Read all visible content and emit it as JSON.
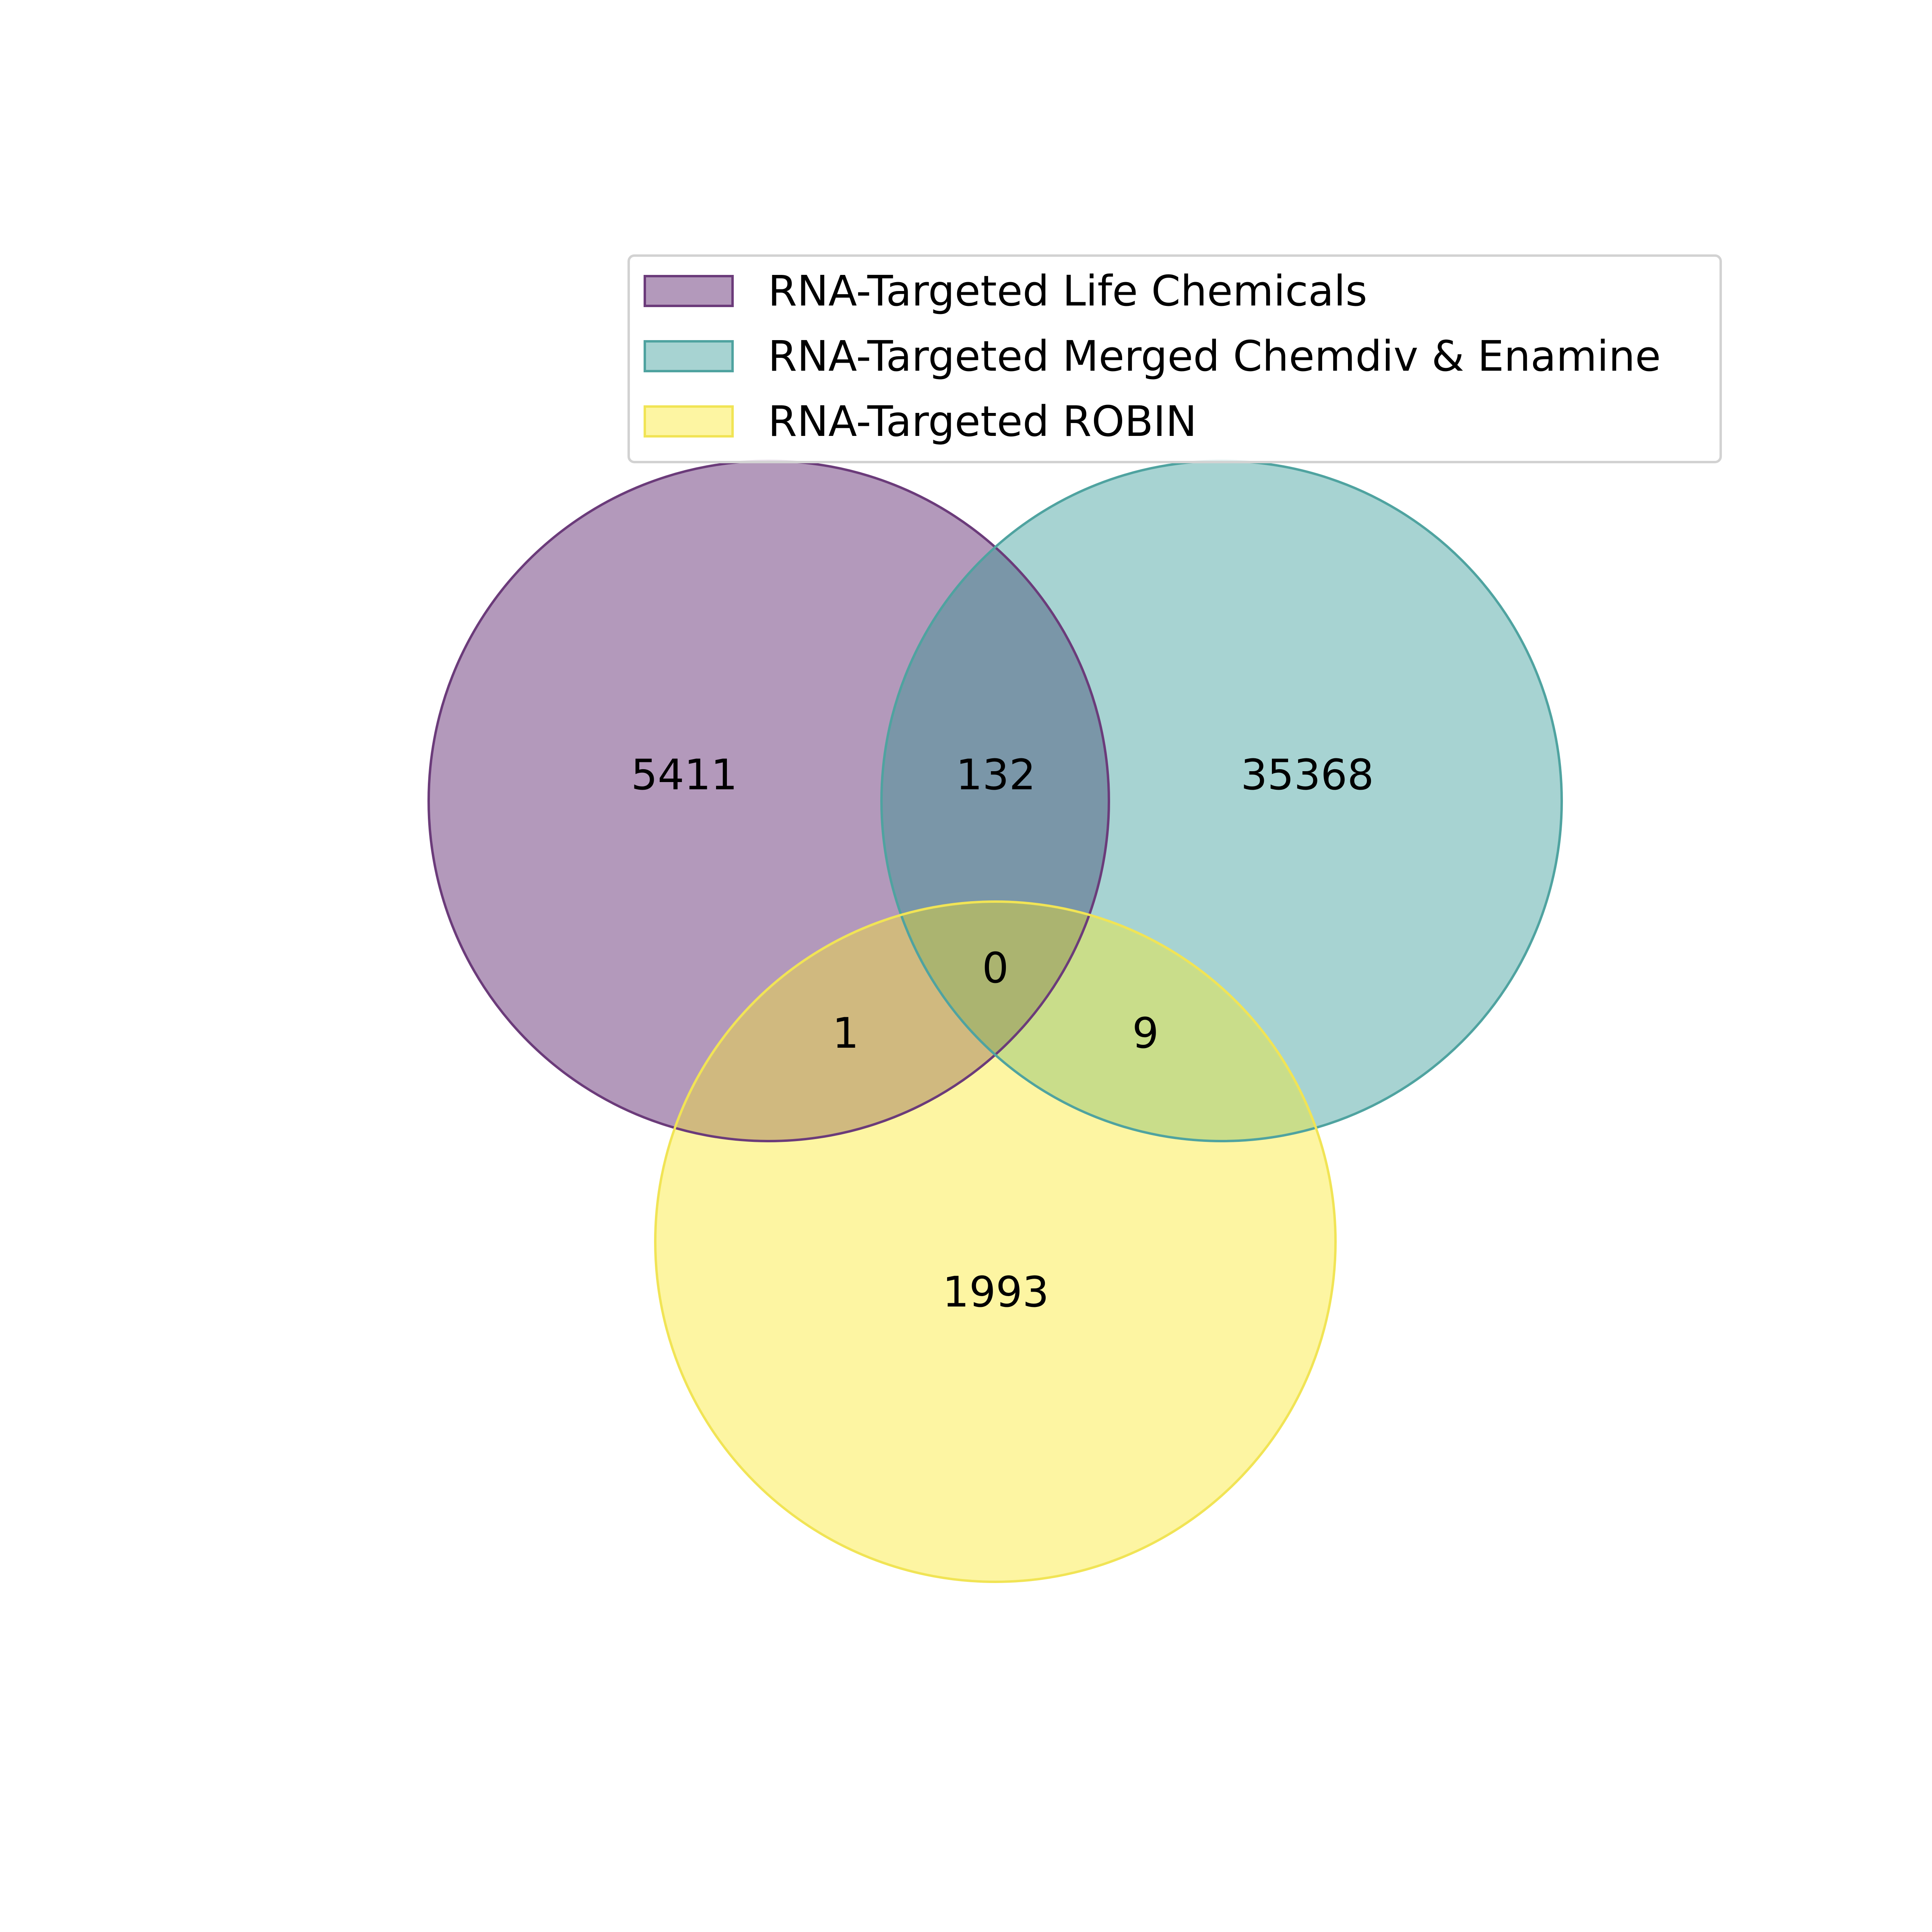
{
  "sets": [
    {
      "label": "RNA-Targeted Life Chemicals",
      "fill": "#b399bb",
      "stroke": "#6b3b7a"
    },
    {
      "label": "RNA-Targeted Merged Chemdiv & Enamine",
      "fill": "#a7d3d2",
      "stroke": "#4fa3a0"
    },
    {
      "label": "RNA-Targeted ROBIN",
      "fill": "#fdf5a2",
      "stroke": "#f1e455"
    }
  ],
  "regions": {
    "only_life_chemicals": "5411",
    "only_chemdiv_enamine": "35368",
    "only_robin": "1993",
    "life_chemicals_and_chemdiv_enamine": "132",
    "life_chemicals_and_robin": "1",
    "chemdiv_enamine_and_robin": "9",
    "all_three": "0"
  },
  "overlap_colors": {
    "life_chemicals_and_chemdiv_enamine": "#7a96a8",
    "life_chemicals_and_robin": "#d0b97f",
    "chemdiv_enamine_and_robin": "#c9dd8a",
    "all_three": "#abb470"
  }
}
